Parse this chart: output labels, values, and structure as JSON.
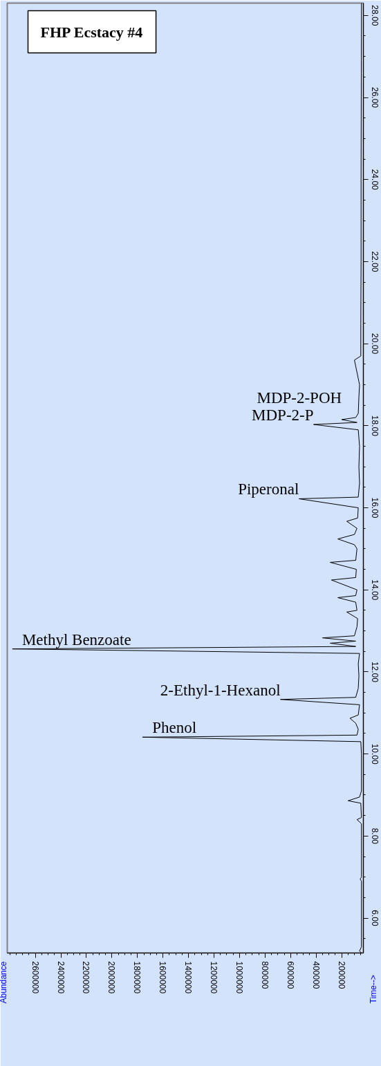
{
  "chart_data": {
    "type": "line",
    "orientation": "horizontal",
    "title": "FHP Ecstacy #4",
    "x": [
      5.15,
      5.2,
      5.3,
      6.9,
      6.95,
      7.0,
      8.3,
      8.4,
      8.45,
      8.8,
      8.86,
      8.95,
      9.1,
      10.0,
      10.3,
      10.41,
      10.46,
      10.6,
      10.75,
      10.87,
      10.95,
      11.2,
      11.33,
      11.38,
      11.6,
      11.9,
      12.2,
      12.45,
      12.56,
      12.62,
      12.7,
      12.75,
      12.83,
      12.88,
      13.1,
      13.3,
      13.46,
      13.5,
      13.7,
      13.81,
      13.86,
      14.0,
      14.24,
      14.3,
      14.5,
      14.67,
      14.72,
      15.0,
      15.1,
      15.24,
      15.35,
      15.5,
      15.67,
      15.75,
      16.0,
      16.22,
      16.26,
      16.6,
      17.0,
      17.5,
      17.9,
      18.03,
      18.08,
      18.15,
      18.2,
      18.3,
      18.7,
      19.0,
      19.6,
      19.7,
      20.5,
      22.0,
      24.0,
      28.3
    ],
    "series": [
      {
        "color": "#000000",
        "values": [
          45000,
          60000,
          45000,
          45000,
          55000,
          45000,
          45000,
          80000,
          45000,
          50000,
          150000,
          60000,
          45000,
          45000,
          50000,
          1760000,
          80000,
          70000,
          90000,
          135000,
          70000,
          60000,
          680000,
          90000,
          70000,
          65000,
          70000,
          60000,
          2780000,
          90000,
          290000,
          90000,
          350000,
          100000,
          80000,
          75000,
          160000,
          80000,
          90000,
          230000,
          90000,
          80000,
          280000,
          90000,
          85000,
          290000,
          90000,
          80000,
          100000,
          230000,
          100000,
          80000,
          160000,
          75000,
          70000,
          535000,
          70000,
          60000,
          65000,
          60000,
          70000,
          420000,
          80000,
          200000,
          90000,
          70000,
          65000,
          60000,
          100000,
          50000,
          50000,
          48000,
          48000,
          45000
        ]
      }
    ],
    "xlim": [
      2820000,
      30000
    ],
    "xticks": [
      200000,
      400000,
      600000,
      800000,
      1000000,
      1200000,
      1400000,
      1600000,
      1800000,
      2000000,
      2200000,
      2400000,
      2600000
    ],
    "ylim": [
      5.15,
      28.3
    ],
    "yticks": [
      {
        "value": 6,
        "label": "6.00"
      },
      {
        "value": 8,
        "label": "8.00"
      },
      {
        "value": 10,
        "label": "10.00"
      },
      {
        "value": 12,
        "label": "12.00"
      },
      {
        "value": 14,
        "label": "14.00"
      },
      {
        "value": 16,
        "label": "16.00"
      },
      {
        "value": 18,
        "label": "18.00"
      },
      {
        "value": 20,
        "label": "20.00"
      },
      {
        "value": 22,
        "label": "22.00"
      },
      {
        "value": 24,
        "label": "24.00"
      },
      {
        "value": 26,
        "label": "26.00"
      },
      {
        "value": 28,
        "label": "28.00"
      }
    ],
    "annotations": [
      {
        "text": "MDP-2-POH",
        "x": 200000,
        "y": 18.15
      },
      {
        "text": "MDP-2-P",
        "x": 420000,
        "y": 18.03
      },
      {
        "text": "Piperonal",
        "x": 535000,
        "y": 16.22
      },
      {
        "text": "Methyl Benzoate",
        "x": 2780000,
        "y": 12.56
      },
      {
        "text": "2-Ethyl-1-Hexanol",
        "x": 680000,
        "y": 11.33
      },
      {
        "text": "Phenol",
        "x": 1760000,
        "y": 10.41
      },
      "Abundance",
      "Time-->"
    ],
    "grid": false,
    "marker": "none",
    "line_style": "solid"
  }
}
